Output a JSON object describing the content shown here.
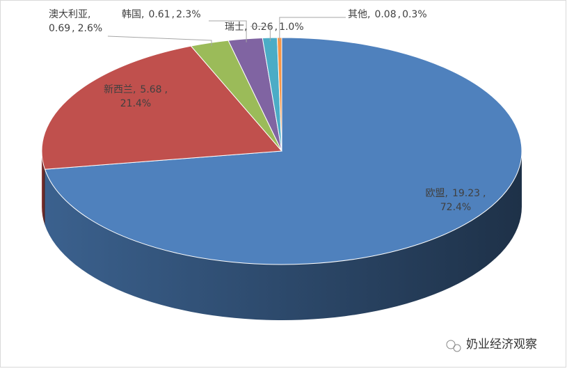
{
  "chart_data": {
    "type": "pie3d",
    "categories": [
      "欧盟",
      "新西兰",
      "澳大利亚",
      "韩国",
      "瑞士",
      "其他"
    ],
    "values": [
      19.23,
      5.68,
      0.69,
      0.61,
      0.26,
      0.08
    ],
    "percent_labels": [
      "72.4%",
      "21.4%",
      "2.6%",
      "2.3%",
      "1.0%",
      "0.3%"
    ],
    "label_separator": ",",
    "colors": [
      "#4f81bd",
      "#c0504d",
      "#9bbb59",
      "#8064a2",
      "#4bacc6",
      "#f79646"
    ]
  },
  "watermark": "奶业经济观察"
}
